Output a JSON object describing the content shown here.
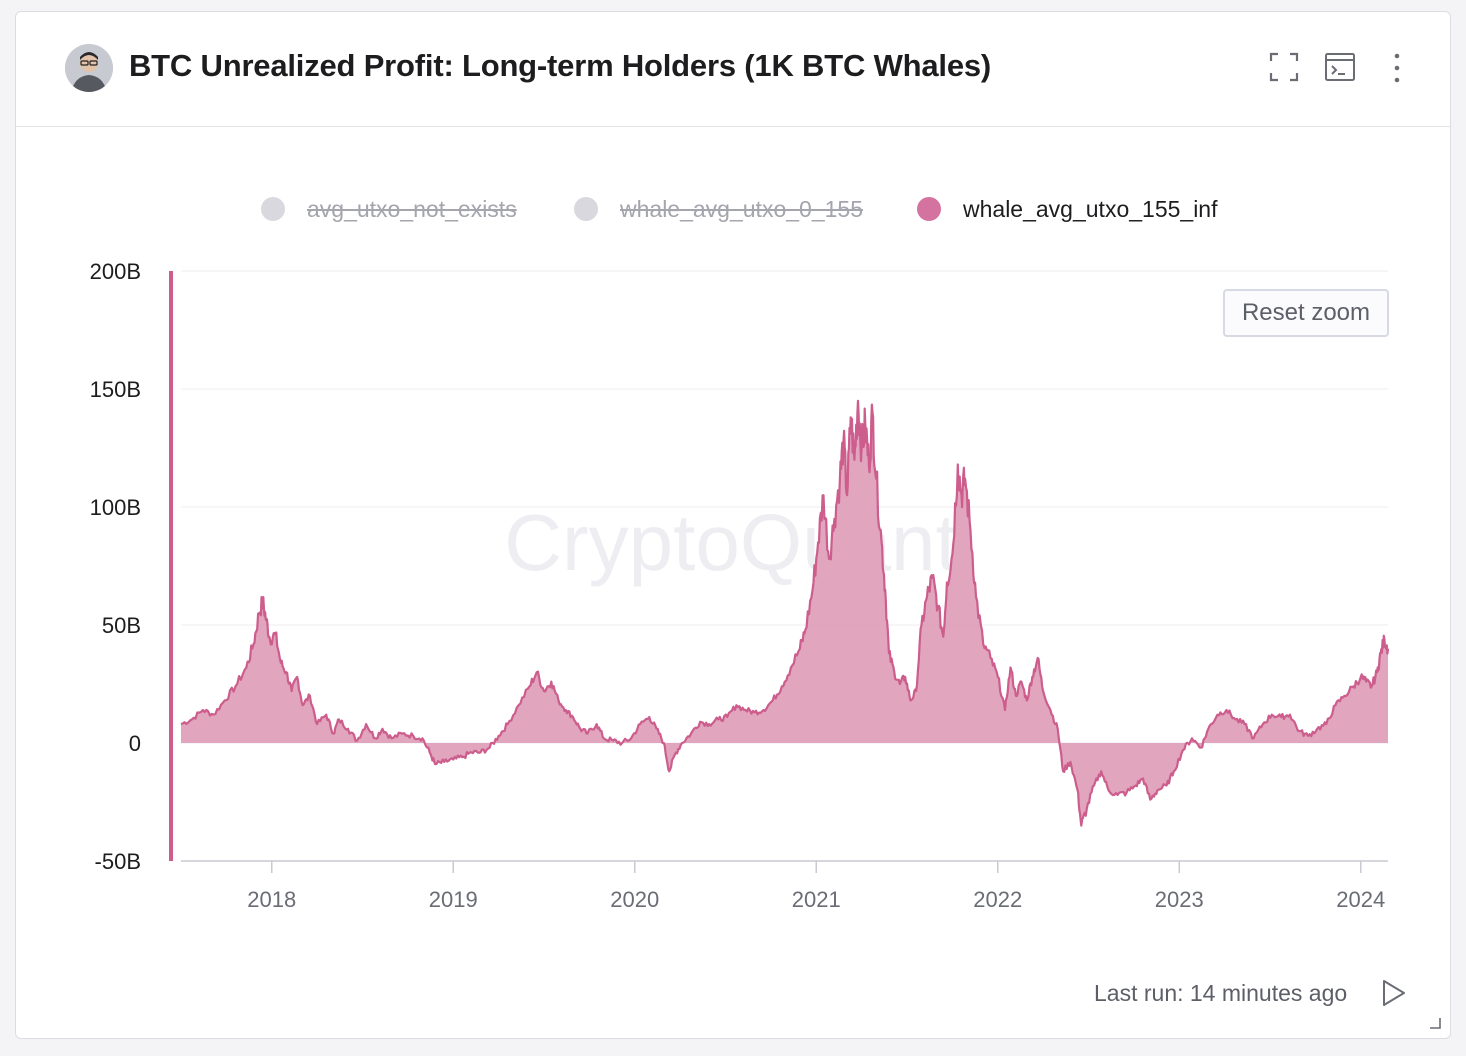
{
  "header": {
    "title": "BTC Unrealized Profit: Long-term Holders (1K BTC Whales)",
    "icons": [
      "fullscreen-icon",
      "terminal-icon",
      "more-vertical-icon"
    ]
  },
  "legend": [
    {
      "label": "avg_utxo_not_exists",
      "active": false,
      "color": "#d8d8de"
    },
    {
      "label": "whale_avg_utxo_0_155",
      "active": false,
      "color": "#d8d8de"
    },
    {
      "label": "whale_avg_utxo_155_inf",
      "active": true,
      "color": "#d4739f"
    }
  ],
  "reset_zoom_label": "Reset zoom",
  "footer": {
    "last_run": "Last run: 14 minutes ago"
  },
  "watermark": "CryptoQuant",
  "colors": {
    "line": "#cc5d8c",
    "fill": "#dfa0bb",
    "grid": "#ececf0",
    "axis": "#cc5d8c"
  },
  "chart_data": {
    "type": "area",
    "title": "BTC Unrealized Profit: Long-term Holders (1K BTC Whales)",
    "series_name": "whale_avg_utxo_155_inf",
    "xlabel": "",
    "ylabel": "",
    "x_range": [
      2017.5,
      2024.15
    ],
    "ylim": [
      -50,
      200
    ],
    "y_unit": "B",
    "y_ticks": [
      "200B",
      "150B",
      "100B",
      "50B",
      "0",
      "-50B"
    ],
    "x_ticks": [
      "2018",
      "2019",
      "2020",
      "2021",
      "2022",
      "2023",
      "2024"
    ],
    "points": [
      [
        2017.5,
        8
      ],
      [
        2017.56,
        10
      ],
      [
        2017.62,
        14
      ],
      [
        2017.68,
        12
      ],
      [
        2017.74,
        18
      ],
      [
        2017.8,
        24
      ],
      [
        2017.86,
        32
      ],
      [
        2017.9,
        42
      ],
      [
        2017.93,
        55
      ],
      [
        2017.95,
        60
      ],
      [
        2017.97,
        52
      ],
      [
        2017.99,
        44
      ],
      [
        2018.02,
        46
      ],
      [
        2018.05,
        34
      ],
      [
        2018.08,
        30
      ],
      [
        2018.11,
        22
      ],
      [
        2018.14,
        28
      ],
      [
        2018.17,
        16
      ],
      [
        2018.21,
        20
      ],
      [
        2018.25,
        8
      ],
      [
        2018.3,
        12
      ],
      [
        2018.34,
        4
      ],
      [
        2018.37,
        10
      ],
      [
        2018.42,
        6
      ],
      [
        2018.47,
        1
      ],
      [
        2018.52,
        8
      ],
      [
        2018.57,
        2
      ],
      [
        2018.61,
        6
      ],
      [
        2018.66,
        2
      ],
      [
        2018.72,
        4
      ],
      [
        2018.78,
        3
      ],
      [
        2018.83,
        2
      ],
      [
        2018.87,
        -4
      ],
      [
        2018.9,
        -9
      ],
      [
        2018.95,
        -8
      ],
      [
        2019.0,
        -7
      ],
      [
        2019.05,
        -6
      ],
      [
        2019.1,
        -4
      ],
      [
        2019.15,
        -4
      ],
      [
        2019.2,
        -2
      ],
      [
        2019.25,
        3
      ],
      [
        2019.3,
        8
      ],
      [
        2019.36,
        16
      ],
      [
        2019.42,
        24
      ],
      [
        2019.46,
        30
      ],
      [
        2019.5,
        22
      ],
      [
        2019.54,
        26
      ],
      [
        2019.58,
        18
      ],
      [
        2019.62,
        14
      ],
      [
        2019.66,
        11
      ],
      [
        2019.7,
        6
      ],
      [
        2019.74,
        4
      ],
      [
        2019.79,
        8
      ],
      [
        2019.83,
        2
      ],
      [
        2019.88,
        1
      ],
      [
        2019.93,
        0
      ],
      [
        2019.98,
        2
      ],
      [
        2020.03,
        8
      ],
      [
        2020.08,
        11
      ],
      [
        2020.12,
        6
      ],
      [
        2020.16,
        0
      ],
      [
        2020.19,
        -12
      ],
      [
        2020.22,
        -5
      ],
      [
        2020.26,
        0
      ],
      [
        2020.31,
        4
      ],
      [
        2020.36,
        9
      ],
      [
        2020.41,
        8
      ],
      [
        2020.46,
        10
      ],
      [
        2020.51,
        11
      ],
      [
        2020.56,
        16
      ],
      [
        2020.61,
        14
      ],
      [
        2020.66,
        13
      ],
      [
        2020.71,
        14
      ],
      [
        2020.76,
        18
      ],
      [
        2020.81,
        24
      ],
      [
        2020.86,
        32
      ],
      [
        2020.91,
        40
      ],
      [
        2020.94,
        48
      ],
      [
        2020.98,
        65
      ],
      [
        2021.01,
        85
      ],
      [
        2021.04,
        105
      ],
      [
        2021.07,
        78
      ],
      [
        2021.1,
        95
      ],
      [
        2021.13,
        112
      ],
      [
        2021.15,
        128
      ],
      [
        2021.17,
        105
      ],
      [
        2021.19,
        138
      ],
      [
        2021.21,
        120
      ],
      [
        2021.23,
        145
      ],
      [
        2021.25,
        125
      ],
      [
        2021.27,
        135
      ],
      [
        2021.29,
        118
      ],
      [
        2021.31,
        140
      ],
      [
        2021.33,
        112
      ],
      [
        2021.36,
        85
      ],
      [
        2021.38,
        65
      ],
      [
        2021.4,
        38
      ],
      [
        2021.43,
        30
      ],
      [
        2021.46,
        25
      ],
      [
        2021.49,
        28
      ],
      [
        2021.52,
        18
      ],
      [
        2021.55,
        22
      ],
      [
        2021.58,
        50
      ],
      [
        2021.61,
        62
      ],
      [
        2021.64,
        70
      ],
      [
        2021.67,
        58
      ],
      [
        2021.7,
        45
      ],
      [
        2021.72,
        68
      ],
      [
        2021.75,
        80
      ],
      [
        2021.78,
        118
      ],
      [
        2021.8,
        105
      ],
      [
        2021.82,
        112
      ],
      [
        2021.85,
        90
      ],
      [
        2021.88,
        62
      ],
      [
        2021.92,
        42
      ],
      [
        2021.96,
        36
      ],
      [
        2022.0,
        28
      ],
      [
        2022.04,
        14
      ],
      [
        2022.07,
        32
      ],
      [
        2022.1,
        20
      ],
      [
        2022.13,
        26
      ],
      [
        2022.16,
        18
      ],
      [
        2022.19,
        28
      ],
      [
        2022.22,
        36
      ],
      [
        2022.25,
        22
      ],
      [
        2022.29,
        14
      ],
      [
        2022.33,
        6
      ],
      [
        2022.36,
        -12
      ],
      [
        2022.4,
        -8
      ],
      [
        2022.44,
        -20
      ],
      [
        2022.46,
        -35
      ],
      [
        2022.49,
        -28
      ],
      [
        2022.53,
        -18
      ],
      [
        2022.57,
        -12
      ],
      [
        2022.61,
        -20
      ],
      [
        2022.66,
        -22
      ],
      [
        2022.71,
        -21
      ],
      [
        2022.76,
        -18
      ],
      [
        2022.8,
        -15
      ],
      [
        2022.84,
        -24
      ],
      [
        2022.88,
        -20
      ],
      [
        2022.93,
        -18
      ],
      [
        2022.97,
        -12
      ],
      [
        2023.02,
        -3
      ],
      [
        2023.07,
        2
      ],
      [
        2023.12,
        -2
      ],
      [
        2023.16,
        6
      ],
      [
        2023.21,
        12
      ],
      [
        2023.26,
        14
      ],
      [
        2023.31,
        10
      ],
      [
        2023.36,
        8
      ],
      [
        2023.41,
        2
      ],
      [
        2023.46,
        8
      ],
      [
        2023.51,
        12
      ],
      [
        2023.56,
        11
      ],
      [
        2023.61,
        12
      ],
      [
        2023.66,
        5
      ],
      [
        2023.71,
        3
      ],
      [
        2023.76,
        6
      ],
      [
        2023.81,
        8
      ],
      [
        2023.86,
        16
      ],
      [
        2023.91,
        20
      ],
      [
        2023.96,
        24
      ],
      [
        2024.0,
        28
      ],
      [
        2024.03,
        26
      ],
      [
        2024.06,
        24
      ],
      [
        2024.09,
        30
      ],
      [
        2024.11,
        38
      ],
      [
        2024.13,
        44
      ],
      [
        2024.15,
        40
      ]
    ]
  }
}
